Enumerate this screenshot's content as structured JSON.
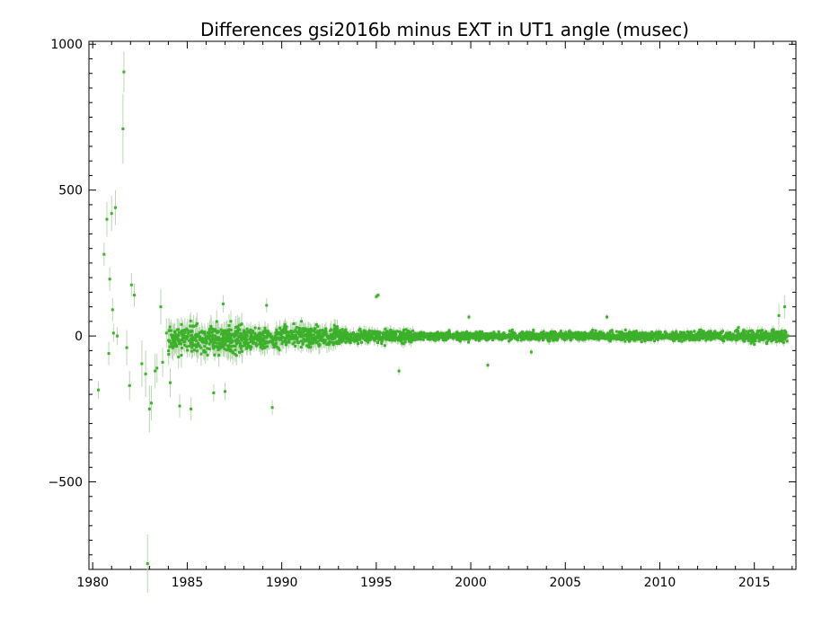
{
  "chart_data": {
    "type": "scatter",
    "title": "Differences gsi2016b minus EXT in UT1 angle   (musec)",
    "xlabel": "",
    "ylabel": "",
    "xlim": [
      1979.8,
      2017.2
    ],
    "ylim": [
      -800,
      1010
    ],
    "x_ticks": [
      {
        "value": 1980,
        "label": "1980"
      },
      {
        "value": 1985,
        "label": "1985"
      },
      {
        "value": 1990,
        "label": "1990"
      },
      {
        "value": 1995,
        "label": "1995"
      },
      {
        "value": 2000,
        "label": "2000"
      },
      {
        "value": 2005,
        "label": "2005"
      },
      {
        "value": 2010,
        "label": "2010"
      },
      {
        "value": 2015,
        "label": "2015"
      }
    ],
    "y_ticks": [
      {
        "value": -500,
        "label": "−500"
      },
      {
        "value": 0,
        "label": "0"
      },
      {
        "value": 500,
        "label": "500"
      },
      {
        "value": 1000,
        "label": "1000"
      }
    ],
    "grid": false,
    "colors": {
      "points": "#3cb02a",
      "error_bars": "#b8d8b0"
    },
    "series": [
      {
        "points": [
          [
            1980.3,
            -185,
            30
          ],
          [
            1980.6,
            280,
            40
          ],
          [
            1980.75,
            400,
            60
          ],
          [
            1980.85,
            -60,
            40
          ],
          [
            1980.9,
            195,
            40
          ],
          [
            1981.0,
            420,
            60
          ],
          [
            1981.05,
            90,
            40
          ],
          [
            1981.1,
            10,
            30
          ],
          [
            1981.2,
            440,
            60
          ],
          [
            1981.3,
            0,
            30
          ],
          [
            1981.6,
            710,
            120
          ],
          [
            1981.65,
            905,
            70
          ],
          [
            1981.8,
            -40,
            60
          ],
          [
            1981.95,
            -170,
            50
          ],
          [
            1982.05,
            175,
            40
          ],
          [
            1982.2,
            140,
            40
          ],
          [
            1982.6,
            -95,
            80
          ],
          [
            1982.8,
            -130,
            80
          ],
          [
            1982.9,
            -780,
            100
          ],
          [
            1983.0,
            -250,
            80
          ],
          [
            1983.1,
            -230,
            60
          ],
          [
            1983.3,
            -120,
            60
          ],
          [
            1983.4,
            -110,
            50
          ],
          [
            1983.6,
            100,
            60
          ],
          [
            1983.7,
            -90,
            50
          ],
          [
            1983.9,
            10,
            50
          ],
          [
            1984.1,
            -160,
            50
          ],
          [
            1984.3,
            0,
            40
          ],
          [
            1984.6,
            -240,
            40
          ],
          [
            1985.2,
            -250,
            40
          ],
          [
            1986.4,
            -195,
            30
          ],
          [
            1986.9,
            110,
            30
          ],
          [
            1987.0,
            -190,
            30
          ],
          [
            1989.2,
            105,
            25
          ],
          [
            1989.5,
            -245,
            25
          ],
          [
            1995.0,
            135,
            10
          ],
          [
            1995.1,
            140,
            10
          ],
          [
            1996.2,
            -120,
            15
          ],
          [
            1999.9,
            65,
            10
          ],
          [
            2000.9,
            -100,
            12
          ],
          [
            2003.2,
            -55,
            10
          ],
          [
            2007.2,
            65,
            10
          ],
          [
            2016.3,
            70,
            40
          ],
          [
            2016.6,
            100,
            40
          ]
        ],
        "bands": [
          {
            "from": 1984,
            "to": 1988,
            "spread": 55
          },
          {
            "from": 1988,
            "to": 1993,
            "spread": 38
          },
          {
            "from": 1993,
            "to": 1997,
            "spread": 24
          },
          {
            "from": 1997,
            "to": 2004,
            "spread": 15
          },
          {
            "from": 2004,
            "to": 2014,
            "spread": 17
          },
          {
            "from": 2014,
            "to": 2016.8,
            "spread": 22
          }
        ]
      }
    ]
  }
}
